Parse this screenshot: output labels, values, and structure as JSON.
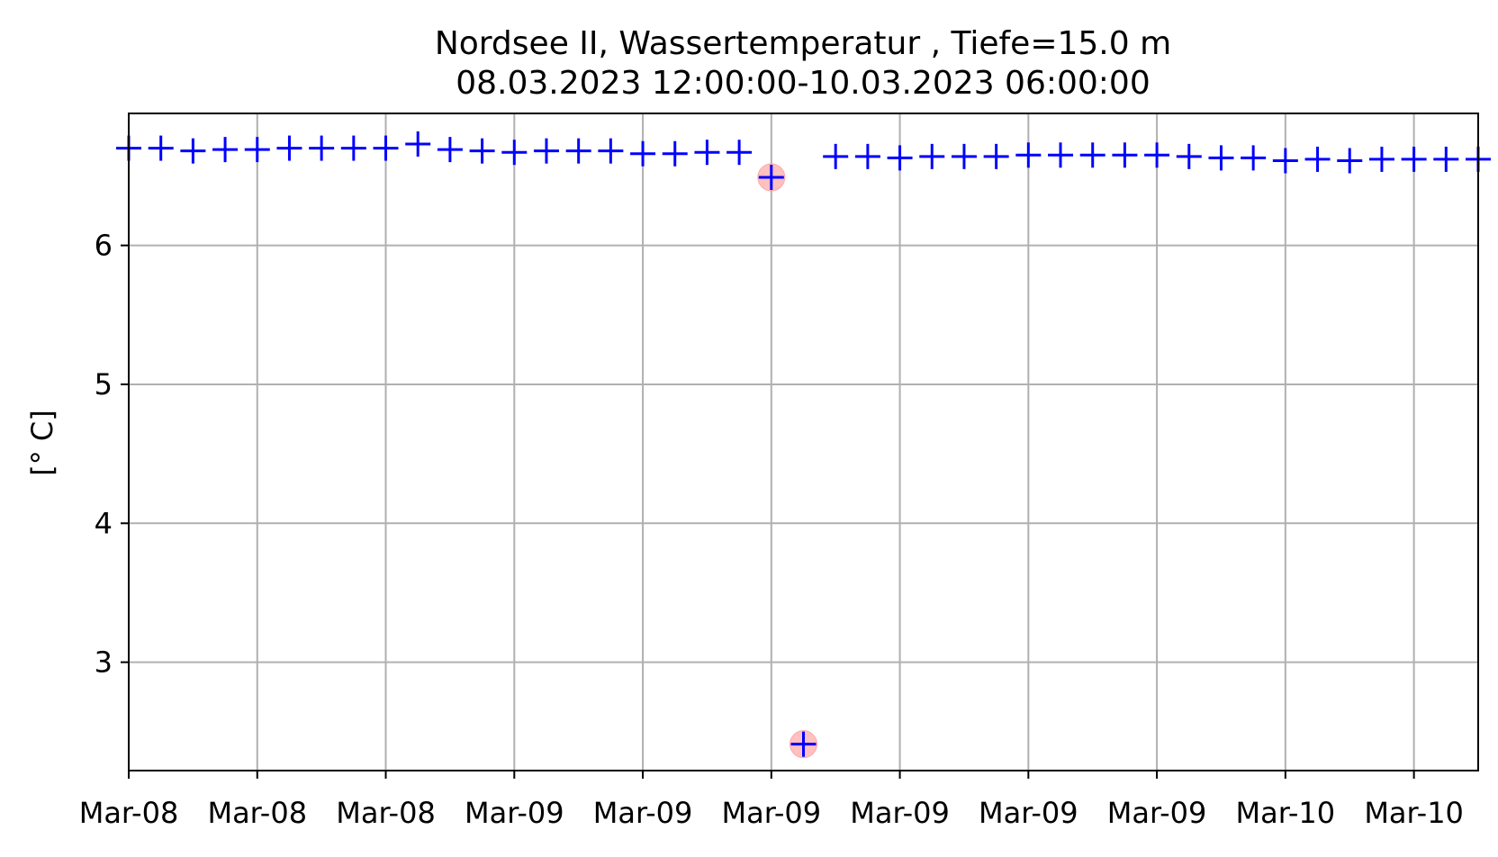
{
  "chart_data": {
    "type": "scatter",
    "title": "Nordsee II, Wassertemperatur , Tiefe=15.0 m",
    "subtitle": "08.03.2023 12:00:00-10.03.2023 06:00:00",
    "xlabel": "",
    "ylabel": "[° C]",
    "grid": true,
    "xlim": [
      0,
      42
    ],
    "ylim": [
      2.22,
      6.95
    ],
    "x_ticks": [
      {
        "x": 0,
        "label": "Mar-08"
      },
      {
        "x": 4,
        "label": "Mar-08"
      },
      {
        "x": 8,
        "label": "Mar-08"
      },
      {
        "x": 12,
        "label": "Mar-09"
      },
      {
        "x": 16,
        "label": "Mar-09"
      },
      {
        "x": 20,
        "label": "Mar-09"
      },
      {
        "x": 24,
        "label": "Mar-09"
      },
      {
        "x": 28,
        "label": "Mar-09"
      },
      {
        "x": 32,
        "label": "Mar-09"
      },
      {
        "x": 36,
        "label": "Mar-10"
      },
      {
        "x": 40,
        "label": "Mar-10"
      }
    ],
    "y_ticks": [
      3,
      4,
      5,
      6
    ],
    "series": [
      {
        "marker": "+",
        "color": "#0000ff",
        "points": [
          [
            0,
            6.7
          ],
          [
            1,
            6.7
          ],
          [
            2,
            6.68
          ],
          [
            3,
            6.69
          ],
          [
            4,
            6.69
          ],
          [
            5,
            6.7
          ],
          [
            6,
            6.7
          ],
          [
            7,
            6.7
          ],
          [
            8,
            6.7
          ],
          [
            9,
            6.73
          ],
          [
            10,
            6.69
          ],
          [
            11,
            6.68
          ],
          [
            12,
            6.67
          ],
          [
            13,
            6.68
          ],
          [
            14,
            6.68
          ],
          [
            15,
            6.68
          ],
          [
            16,
            6.66
          ],
          [
            17,
            6.66
          ],
          [
            18,
            6.67
          ],
          [
            19,
            6.67
          ],
          [
            20,
            6.49
          ],
          [
            21,
            2.41
          ],
          [
            22,
            6.64
          ],
          [
            23,
            6.64
          ],
          [
            24,
            6.63
          ],
          [
            25,
            6.64
          ],
          [
            26,
            6.64
          ],
          [
            27,
            6.64
          ],
          [
            28,
            6.65
          ],
          [
            29,
            6.65
          ],
          [
            30,
            6.65
          ],
          [
            31,
            6.65
          ],
          [
            32,
            6.65
          ],
          [
            33,
            6.64
          ],
          [
            34,
            6.63
          ],
          [
            35,
            6.63
          ],
          [
            36,
            6.61
          ],
          [
            37,
            6.62
          ],
          [
            38,
            6.61
          ],
          [
            39,
            6.62
          ],
          [
            40,
            6.62
          ],
          [
            41,
            6.62
          ],
          [
            42,
            6.62
          ]
        ]
      }
    ],
    "flagged_points": [
      {
        "x": 20,
        "y": 6.49,
        "color": "#ffb6b6"
      },
      {
        "x": 21,
        "y": 2.41,
        "color": "#ffb6b6"
      }
    ]
  }
}
